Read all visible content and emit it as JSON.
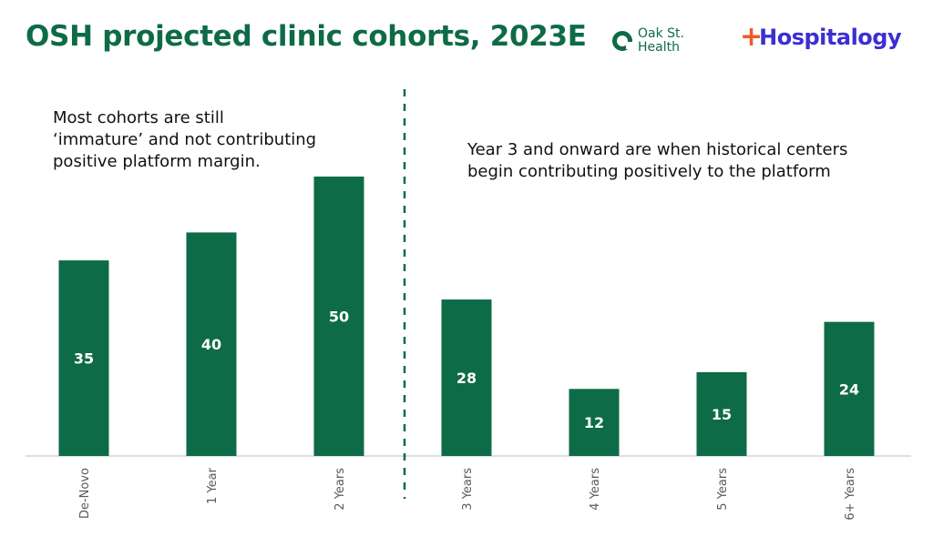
{
  "header": {
    "title": "OSH projected clinic cohorts, 2023E",
    "logos": [
      {
        "name": "oak-street-health",
        "text": "Oak St. Health",
        "color": "#0e6b47"
      },
      {
        "name": "hospitalogy",
        "text": "Hospitalogy",
        "colors": [
          "#f05a28",
          "#3b2fd1"
        ]
      }
    ]
  },
  "annotations": {
    "left": "Most cohorts are still ‘immature’ and not contributing positive platform margin.",
    "right": "Year 3 and onward are when historical centers begin contributing positively to the platform"
  },
  "colors": {
    "bar": "#0e6b47",
    "title": "#0e6b47",
    "divider": "#0e6b47",
    "axis": "#bfbfbf"
  },
  "chart_data": {
    "type": "bar",
    "title": "OSH projected clinic cohorts, 2023E",
    "xlabel": "",
    "ylabel": "",
    "categories": [
      "De-Novo",
      "1 Year",
      "2 Years",
      "3 Years",
      "4 Years",
      "5 Years",
      "6+ Years"
    ],
    "values": [
      35,
      40,
      50,
      28,
      12,
      15,
      24
    ],
    "ylim": [
      0,
      50
    ],
    "data_labels": true,
    "grid": false,
    "legend": "none",
    "divider_after_category": "2 Years",
    "x_tick_rotation": "vertical"
  }
}
